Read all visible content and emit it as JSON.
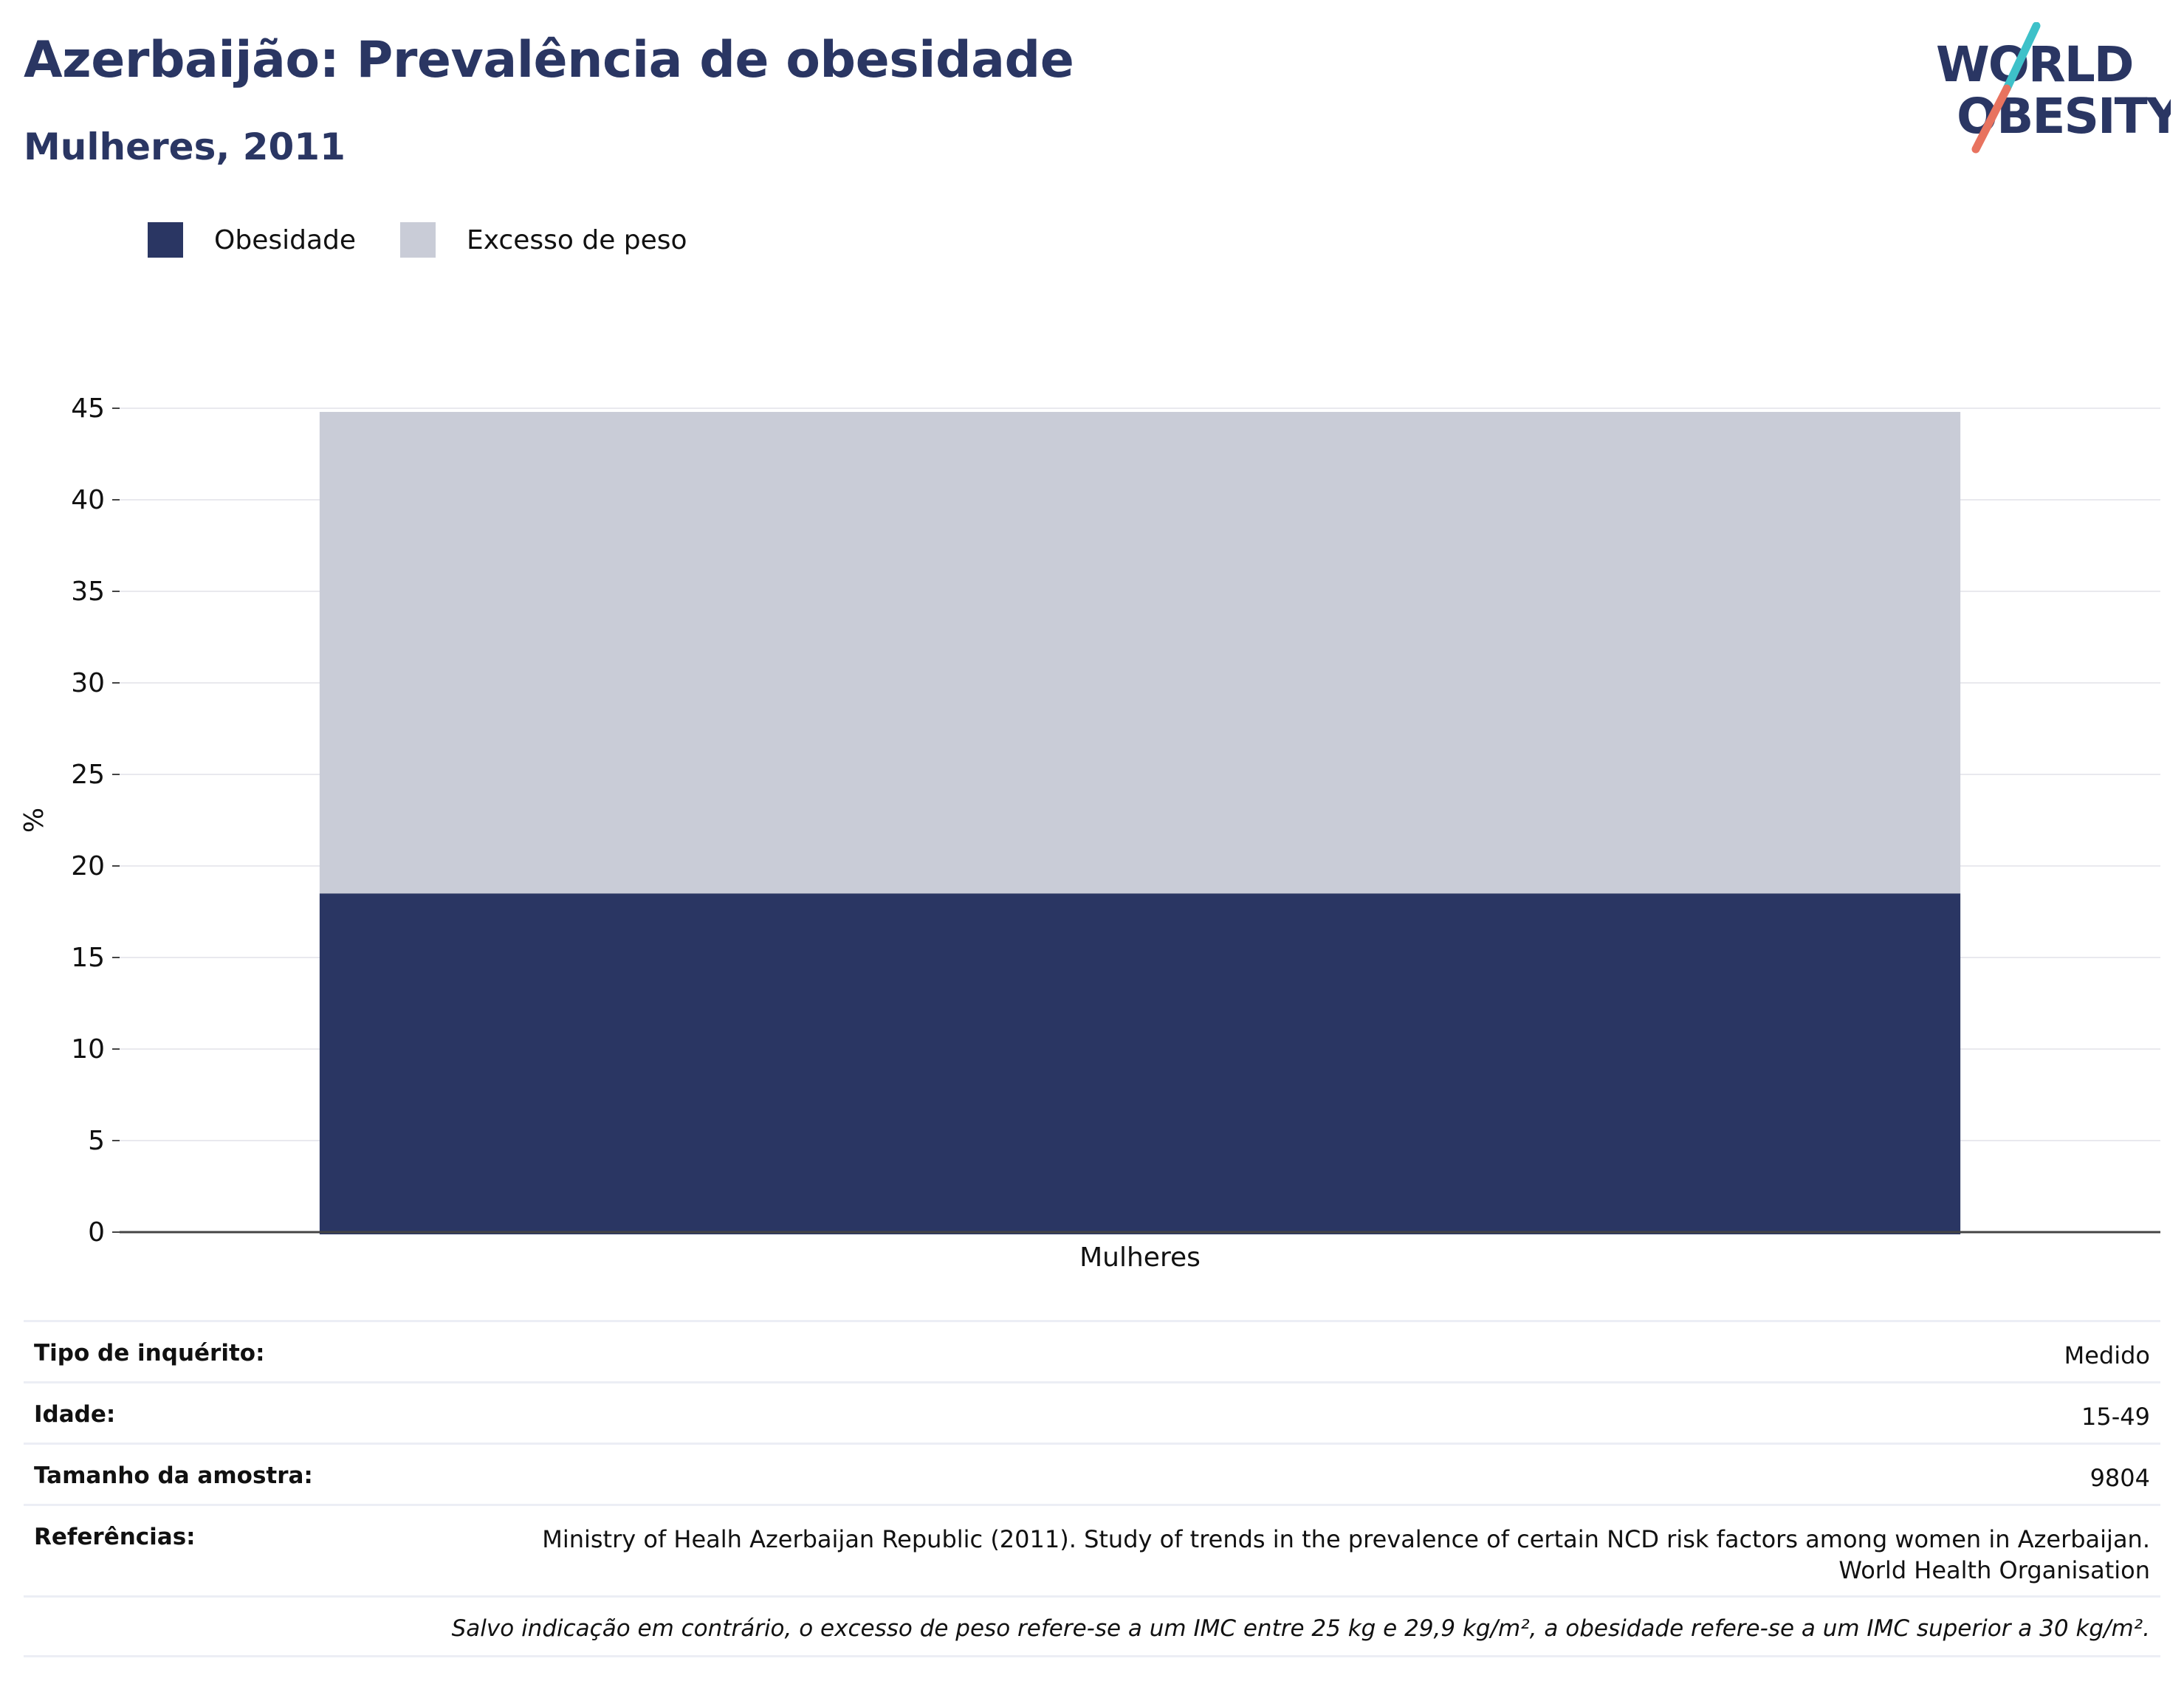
{
  "header": {
    "title": "Azerbaijão: Prevalência de obesidade",
    "subtitle": "Mulheres, 2011"
  },
  "logo": {
    "line1": "WORLD",
    "line2": "OBESITY",
    "slash_colors": [
      "#3ec1c9",
      "#e8735f"
    ]
  },
  "colors": {
    "obesity": "#2a3663",
    "overweight": "#c9ccd7",
    "text": "#2a3663",
    "grid": "#e9e9ee",
    "axis": "#444444"
  },
  "legend": {
    "items": [
      {
        "label": "Obesidade",
        "color": "#2a3663"
      },
      {
        "label": "Excesso de peso",
        "color": "#c9ccd7"
      }
    ]
  },
  "chart_data": {
    "type": "bar",
    "stacked": true,
    "categories": [
      "Mulheres"
    ],
    "series": [
      {
        "name": "Obesidade",
        "values": [
          18.5
        ],
        "color": "#2a3663"
      },
      {
        "name": "Excesso de peso",
        "values": [
          26.3
        ],
        "color": "#c9ccd7"
      }
    ],
    "xlabel": "",
    "ylabel": "%",
    "ylim": [
      0,
      45
    ],
    "yticks": [
      0,
      5,
      10,
      15,
      20,
      25,
      30,
      35,
      40,
      45
    ],
    "grid": true,
    "legend_position": "top-left"
  },
  "info": {
    "survey_type": {
      "label": "Tipo de inquérito:",
      "value": "Medido"
    },
    "age": {
      "label": "Idade:",
      "value": "15-49"
    },
    "sample_size": {
      "label": "Tamanho da amostra:",
      "value": "9804"
    },
    "references": {
      "label": "Referências:",
      "line1": "Ministry of Healh Azerbaijan Republic (2011). Study of trends in the prevalence of certain NCD risk factors among women in Azerbaijan.",
      "line2": "World Health Organisation"
    },
    "note": "Salvo indicação em contrário, o excesso de peso refere-se a um IMC entre 25 kg e 29,9 kg/m², a obesidade refere-se a um IMC superior a 30 kg/m²."
  }
}
